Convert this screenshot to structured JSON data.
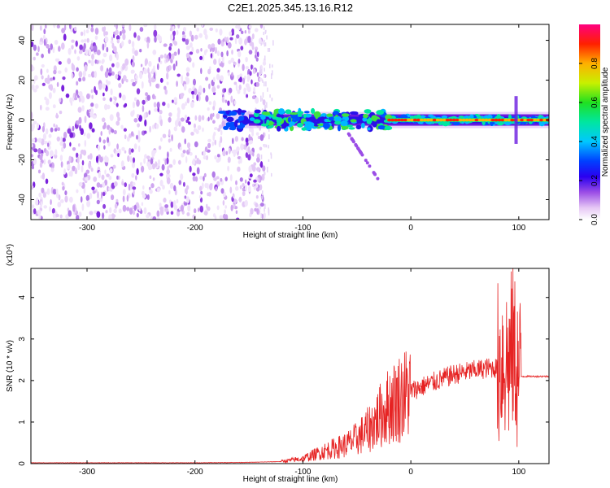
{
  "title": "C2E1.2025.345.13.16.R12",
  "chart_data": [
    {
      "type": "heatmap",
      "xlabel": "Height of straight line (km)",
      "ylabel": "Frequency (Hz)",
      "xlim": [
        -352,
        128
      ],
      "ylim": [
        -50,
        48
      ],
      "xticks": [
        -300,
        -200,
        -100,
        0,
        100
      ],
      "yticks": [
        -40,
        -20,
        0,
        20,
        40
      ],
      "colorbar": {
        "label": "Normalized spectral amplitude",
        "range": [
          0,
          1
        ],
        "ticks": [
          0.0,
          0.2,
          0.4,
          0.6,
          0.8
        ],
        "tick_labels": [
          "0.0",
          "0.2",
          "0.4",
          "0.6",
          "0.8"
        ]
      },
      "features": [
        {
          "name": "diffuse noise",
          "x_range": [
            -352,
            -135
          ],
          "y_range": [
            -50,
            48
          ],
          "amplitude": 0.15
        },
        {
          "name": "signal band",
          "x_range": [
            -175,
            128
          ],
          "center_freq": 0,
          "amplitude_range": [
            0.2,
            0.9
          ]
        },
        {
          "name": "spur",
          "x_range": [
            -60,
            -30
          ],
          "freq_range": [
            -30,
            -5
          ],
          "amplitude": 0.2
        }
      ]
    },
    {
      "type": "line",
      "xlabel": "Height of straight line (km)",
      "ylabel": "SNR (10 * v/v)",
      "y_multiplier": "(x10⁴)",
      "xlim": [
        -352,
        128
      ],
      "ylim": [
        0,
        4.7
      ],
      "xticks": [
        -300,
        -200,
        -100,
        0,
        100
      ],
      "yticks": [
        0,
        1,
        2,
        3,
        4
      ],
      "series": [
        {
          "name": "SNR",
          "color": "#e62222",
          "x": [
            -352,
            -300,
            -250,
            -200,
            -150,
            -120,
            -100,
            -80,
            -60,
            -50,
            -40,
            -30,
            -20,
            -10,
            0,
            10,
            20,
            30,
            40,
            50,
            60,
            70,
            80,
            85,
            90,
            95,
            100,
            105,
            110,
            128
          ],
          "y": [
            0.02,
            0.02,
            0.02,
            0.02,
            0.03,
            0.05,
            0.12,
            0.3,
            0.45,
            0.6,
            0.8,
            1.1,
            1.4,
            1.6,
            1.75,
            1.85,
            1.95,
            2.05,
            2.15,
            2.2,
            2.25,
            2.3,
            2.3,
            2.6,
            2.4,
            2.8,
            2.1,
            2.1,
            2.1,
            2.1
          ]
        }
      ]
    }
  ]
}
